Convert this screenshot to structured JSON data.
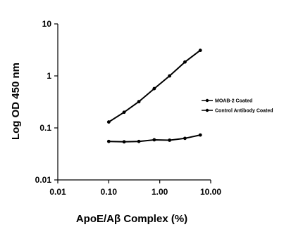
{
  "chart_data": {
    "type": "line",
    "xlabel": "ApoE/Aβ Complex (%)",
    "ylabel": "Log OD 450 nm",
    "xscale": "log",
    "yscale": "log",
    "xlim": [
      0.01,
      10
    ],
    "ylim": [
      0.01,
      10
    ],
    "x_ticks": [
      "0.01",
      "0.10",
      "1.00",
      "10.00"
    ],
    "y_ticks": [
      "0.01",
      "0.1",
      "1",
      "10"
    ],
    "legend_position": "right",
    "grid": false,
    "series": [
      {
        "name": "MOAB-2 Coated",
        "color": "#000000",
        "x": [
          0.1,
          0.2,
          0.39,
          0.78,
          1.56,
          3.125,
          6.25
        ],
        "y": [
          0.13,
          0.2,
          0.32,
          0.57,
          1.0,
          1.85,
          3.1
        ]
      },
      {
        "name": "Control Antibody Coated",
        "color": "#000000",
        "x": [
          0.1,
          0.2,
          0.39,
          0.78,
          1.56,
          3.125,
          6.25
        ],
        "y": [
          0.055,
          0.054,
          0.055,
          0.059,
          0.058,
          0.063,
          0.073
        ]
      }
    ]
  }
}
